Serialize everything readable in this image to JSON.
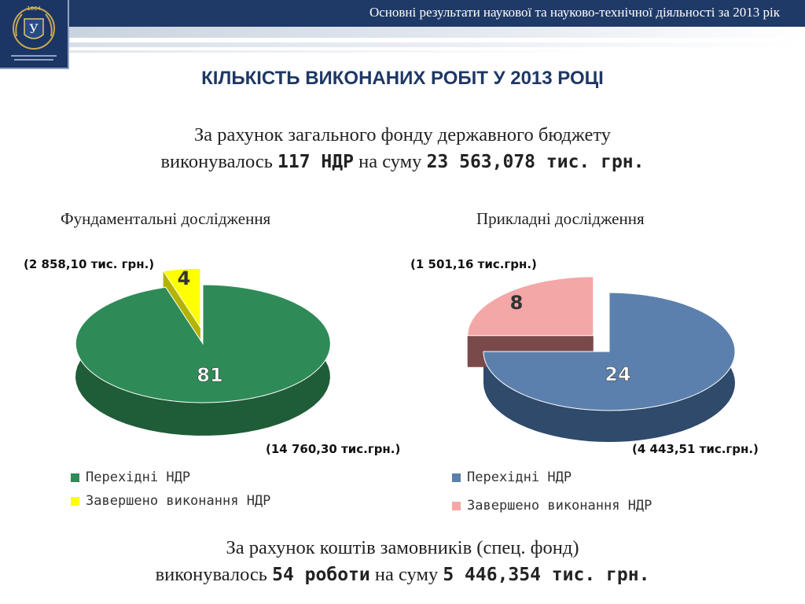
{
  "header": {
    "title": "Основні результати наукової та науково-технічної діяльності за 2013 рік",
    "logo_year": "1804"
  },
  "page_title": "КІЛЬКІСТЬ ВИКОНАНИХ РОБІТ У 2013 РОЦІ",
  "intro": {
    "line1": "За рахунок загального фонду  державного бюджету",
    "line2_pre": "виконувалось ",
    "line2_bold1": "117 НДР",
    "line2_mid": " на суму ",
    "line2_bold2": "23 563,078 тис. грн."
  },
  "outro": {
    "line1": "За рахунок коштів замовників (спец. фонд)",
    "line2_pre": "виконувалось ",
    "line2_bold1": "54 роботи",
    "line2_mid": " на суму ",
    "line2_bold2": "5 446,354 тис. грн."
  },
  "chart_data": [
    {
      "type": "pie",
      "title": "Фундаментальні дослідження",
      "categories": [
        "Перехідні НДР",
        "Завершено виконання НДР"
      ],
      "values": [
        81,
        4
      ],
      "labels": [
        "81",
        "4"
      ],
      "amounts": [
        "(14 760,30 тис.грн.)",
        "(2 858,10 тис. грн.)"
      ],
      "colors": [
        "#2e8b57",
        "#ffff00"
      ],
      "side_colors": [
        "#1f5c38",
        "#b3b300"
      ],
      "label_colors": [
        "#ffffff",
        "#333333"
      ],
      "exploded_index": 1,
      "legend_position": "bottom"
    },
    {
      "type": "pie",
      "title": "Прикладні дослідження",
      "categories": [
        "Перехідні НДР",
        "Завершено виконання НДР"
      ],
      "values": [
        24,
        8
      ],
      "labels": [
        "24",
        "8"
      ],
      "amounts": [
        "(4 443,51 тис.грн.)",
        "(1 501,16 тис.грн.)"
      ],
      "colors": [
        "#5b80ad",
        "#f4a7a7"
      ],
      "side_colors": [
        "#2f4a6a",
        "#7a4a4a"
      ],
      "label_colors": [
        "#ffffff",
        "#333333"
      ],
      "exploded_index": 1,
      "legend_position": "bottom"
    }
  ]
}
